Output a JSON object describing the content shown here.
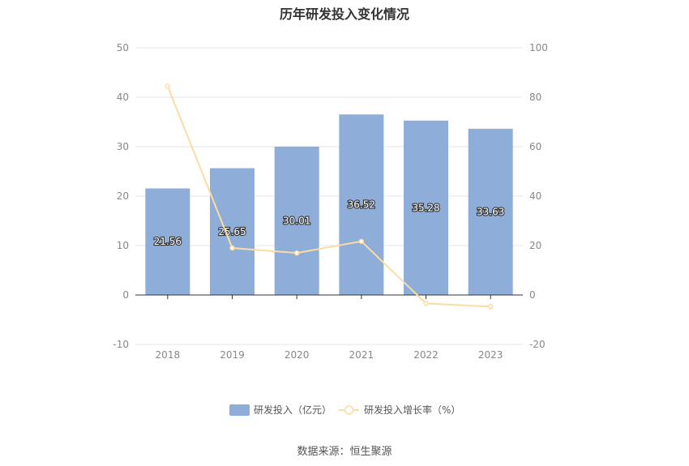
{
  "title": "历年研发投入变化情况",
  "source": "数据来源：恒生聚源",
  "colors": {
    "bar": "#8eadd9",
    "line": "#fbdca4",
    "grid": "#e6e6e6",
    "axis": "#333333"
  },
  "chart_data": {
    "type": "bar",
    "title": "历年研发投入变化情况",
    "categories": [
      "2018",
      "2019",
      "2020",
      "2021",
      "2022",
      "2023"
    ],
    "series": [
      {
        "name": "研发投入（亿元）",
        "type": "bar",
        "axis": "left",
        "values": [
          21.56,
          25.65,
          30.01,
          36.52,
          35.28,
          33.63
        ]
      },
      {
        "name": "研发投入增长率（%）",
        "type": "line",
        "axis": "right",
        "values": [
          84.5,
          19.0,
          17.0,
          21.7,
          -3.4,
          -4.7
        ]
      }
    ],
    "left_axis": {
      "min": -10,
      "max": 50,
      "ticks": [
        "-10",
        "0",
        "10",
        "20",
        "30",
        "40",
        "50"
      ]
    },
    "right_axis": {
      "min": -20,
      "max": 100,
      "ticks": [
        "-20",
        "0",
        "20",
        "40",
        "60",
        "80",
        "100"
      ]
    },
    "bar_labels": [
      "21.56",
      "25.65",
      "30.01",
      "36.52",
      "35.28",
      "33.63"
    ],
    "grid": true,
    "legend_position": "bottom"
  }
}
